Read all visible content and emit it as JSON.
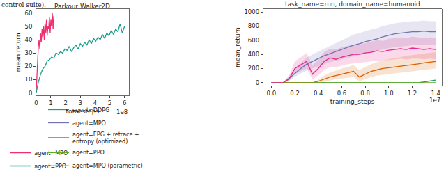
{
  "page_text": "control suite).",
  "chart_data": [
    {
      "type": "line",
      "title": "Parkour Walker2D",
      "x_label": "total steps",
      "y_label": "mean return",
      "annotations": [
        "1e8"
      ],
      "xlim": [
        0,
        6.3
      ],
      "xticks": [
        0,
        1,
        2,
        3,
        4,
        5,
        6
      ],
      "ylim": [
        -2,
        63
      ],
      "yticks": [
        0,
        10,
        20,
        30,
        40,
        50,
        60
      ],
      "grid": false,
      "legend": "bottom",
      "series": [
        {
          "name": "agent=MPO",
          "color": "#f0306e",
          "x": [
            0,
            0.05,
            0.1,
            0.15,
            0.2,
            0.25,
            0.3,
            0.35,
            0.4,
            0.45,
            0.5,
            0.55,
            0.6,
            0.65,
            0.7,
            0.75,
            0.8,
            0.85,
            0.9,
            0.95,
            1.0,
            1.05,
            1.1,
            1.15,
            1.2
          ],
          "values": [
            0,
            15,
            28,
            35,
            40,
            33,
            45,
            38,
            48,
            42,
            50,
            40,
            52,
            45,
            55,
            43,
            50,
            48,
            57,
            45,
            55,
            50,
            60,
            48,
            58
          ]
        },
        {
          "name": "agent=PPO",
          "color": "#1a9c8c",
          "x": [
            0,
            0.15,
            0.3,
            0.45,
            0.6,
            0.75,
            0.9,
            1.05,
            1.2,
            1.35,
            1.5,
            1.65,
            1.8,
            1.95,
            2.1,
            2.25,
            2.4,
            2.55,
            2.7,
            2.85,
            3.0,
            3.15,
            3.3,
            3.45,
            3.6,
            3.75,
            3.9,
            4.05,
            4.2,
            4.35,
            4.5,
            4.65,
            4.8,
            4.95,
            5.1,
            5.25,
            5.4,
            5.55,
            5.7,
            5.85,
            6.0
          ],
          "values": [
            0,
            8,
            14,
            18,
            20,
            24,
            25,
            27,
            26,
            30,
            29,
            31,
            30,
            33,
            32,
            35,
            31,
            34,
            36,
            33,
            37,
            35,
            38,
            36,
            40,
            37,
            41,
            39,
            42,
            40,
            44,
            41,
            45,
            43,
            47,
            44,
            48,
            46,
            52,
            45,
            50
          ]
        }
      ]
    },
    {
      "type": "line",
      "title": "task_name=run, domain_name=humanoid",
      "x_label": "training_steps",
      "y_label": "mean_return",
      "annotations": [
        "1e7"
      ],
      "xlim": [
        -0.07,
        1.45
      ],
      "xticks": [
        {
          "value": 0,
          "label": "0.0"
        },
        {
          "value": 0.2,
          "label": "0.2"
        },
        {
          "value": 0.4,
          "label": "0.4"
        },
        {
          "value": 0.6,
          "label": "0.6"
        },
        {
          "value": 0.8,
          "label": "0.8"
        },
        {
          "value": 1,
          "label": "1.0"
        },
        {
          "value": 1.2,
          "label": "1.2"
        },
        {
          "value": 1.4,
          "label": "1.4"
        }
      ],
      "ylim": [
        -40,
        1040
      ],
      "yticks": [
        0,
        200,
        400,
        600,
        800,
        1000
      ],
      "grid": false,
      "legend": "bottom",
      "series": [
        {
          "name": "agent=DDPG",
          "color": "#1b9e77",
          "x": [
            0,
            0.05,
            0.1,
            0.15,
            0.2,
            0.25,
            0.3,
            0.35,
            0.4,
            0.45,
            0.5,
            0.55,
            0.6,
            0.65,
            0.7,
            0.75,
            0.8,
            0.85,
            0.9,
            0.95,
            1.0,
            1.05,
            1.1,
            1.15,
            1.2,
            1.25,
            1.3,
            1.35,
            1.4
          ],
          "values": [
            0,
            0,
            0,
            0,
            0,
            0,
            0,
            0,
            0,
            0,
            0,
            0,
            0,
            0,
            0,
            0,
            0,
            0,
            0,
            0,
            0,
            0,
            0,
            0,
            0,
            0,
            10,
            20,
            35
          ]
        },
        {
          "name": "agent=MPO",
          "color": "#7570b3",
          "x": [
            0,
            0.05,
            0.1,
            0.15,
            0.2,
            0.25,
            0.3,
            0.35,
            0.4,
            0.45,
            0.5,
            0.55,
            0.6,
            0.65,
            0.7,
            0.75,
            0.8,
            0.85,
            0.9,
            0.95,
            1.0,
            1.05,
            1.1,
            1.15,
            1.2,
            1.25,
            1.3,
            1.35,
            1.4
          ],
          "values": [
            0,
            0,
            0,
            60,
            130,
            200,
            260,
            300,
            340,
            380,
            410,
            440,
            470,
            500,
            530,
            550,
            580,
            600,
            620,
            650,
            670,
            690,
            700,
            710,
            720,
            720,
            730,
            720,
            720
          ],
          "lower": [
            0,
            0,
            0,
            30,
            80,
            130,
            170,
            200,
            230,
            260,
            290,
            310,
            330,
            350,
            370,
            390,
            410,
            430,
            450,
            470,
            490,
            500,
            510,
            520,
            530,
            530,
            540,
            530,
            530
          ],
          "upper": [
            0,
            0,
            0,
            100,
            200,
            280,
            350,
            400,
            440,
            480,
            520,
            560,
            600,
            640,
            680,
            700,
            730,
            750,
            770,
            800,
            820,
            840,
            850,
            860,
            870,
            870,
            880,
            870,
            870
          ]
        },
        {
          "name": "agent=EPG + retrace + entropy (optimized)",
          "color": "#d95f02",
          "x": [
            0,
            0.05,
            0.1,
            0.15,
            0.2,
            0.25,
            0.3,
            0.35,
            0.4,
            0.45,
            0.5,
            0.55,
            0.6,
            0.65,
            0.7,
            0.75,
            0.8,
            0.85,
            0.9,
            0.95,
            1.0,
            1.05,
            1.1,
            1.15,
            1.2,
            1.25,
            1.3,
            1.35,
            1.4
          ],
          "values": [
            0,
            0,
            0,
            0,
            0,
            0,
            0,
            0,
            20,
            50,
            80,
            100,
            120,
            140,
            160,
            80,
            120,
            160,
            180,
            200,
            210,
            220,
            230,
            240,
            250,
            265,
            280,
            290,
            300
          ],
          "lower": [
            0,
            0,
            0,
            0,
            0,
            0,
            0,
            0,
            0,
            10,
            30,
            50,
            60,
            70,
            80,
            20,
            50,
            80,
            100,
            110,
            120,
            130,
            140,
            150,
            160,
            170,
            180,
            190,
            200
          ],
          "upper": [
            0,
            0,
            0,
            0,
            0,
            0,
            0,
            0,
            40,
            100,
            140,
            170,
            200,
            220,
            250,
            180,
            220,
            260,
            290,
            310,
            330,
            350,
            360,
            380,
            390,
            400,
            410,
            420,
            430
          ]
        },
        {
          "name": "agent=PPO",
          "color": "#66a61e",
          "x": [
            0,
            0.05,
            0.1,
            0.15,
            0.2,
            0.25,
            0.3,
            0.35,
            0.4,
            0.45,
            0.5,
            0.55,
            0.6,
            0.65,
            0.7,
            0.75,
            0.8,
            0.85,
            0.9,
            0.95,
            1.0,
            1.05,
            1.1,
            1.15,
            1.2,
            1.25,
            1.3,
            1.35,
            1.4
          ],
          "values": [
            0,
            0,
            0,
            0,
            0,
            0,
            0,
            0,
            0,
            0,
            0,
            0,
            0,
            0,
            0,
            0,
            0,
            0,
            0,
            0,
            0,
            0,
            0,
            0,
            0,
            0,
            0,
            0,
            0
          ]
        },
        {
          "name": "agent=MPO (parametric)",
          "color": "#e7298a",
          "x": [
            0,
            0.05,
            0.1,
            0.15,
            0.2,
            0.25,
            0.3,
            0.35,
            0.4,
            0.45,
            0.5,
            0.55,
            0.6,
            0.65,
            0.7,
            0.75,
            0.8,
            0.85,
            0.9,
            0.95,
            1.0,
            1.05,
            1.1,
            1.15,
            1.2,
            1.25,
            1.3,
            1.35,
            1.4
          ],
          "values": [
            0,
            0,
            0,
            50,
            200,
            250,
            300,
            120,
            200,
            300,
            350,
            330,
            360,
            380,
            400,
            400,
            420,
            430,
            450,
            440,
            460,
            470,
            480,
            470,
            490,
            480,
            470,
            480,
            470
          ],
          "lower": [
            0,
            0,
            0,
            20,
            120,
            160,
            200,
            50,
            100,
            180,
            220,
            220,
            240,
            260,
            270,
            280,
            290,
            300,
            310,
            310,
            320,
            330,
            340,
            330,
            340,
            340,
            330,
            340,
            330
          ],
          "upper": [
            0,
            0,
            0,
            90,
            300,
            360,
            420,
            250,
            320,
            430,
            480,
            470,
            500,
            520,
            540,
            540,
            560,
            580,
            600,
            590,
            620,
            630,
            640,
            630,
            650,
            640,
            630,
            640,
            630
          ]
        }
      ]
    }
  ]
}
